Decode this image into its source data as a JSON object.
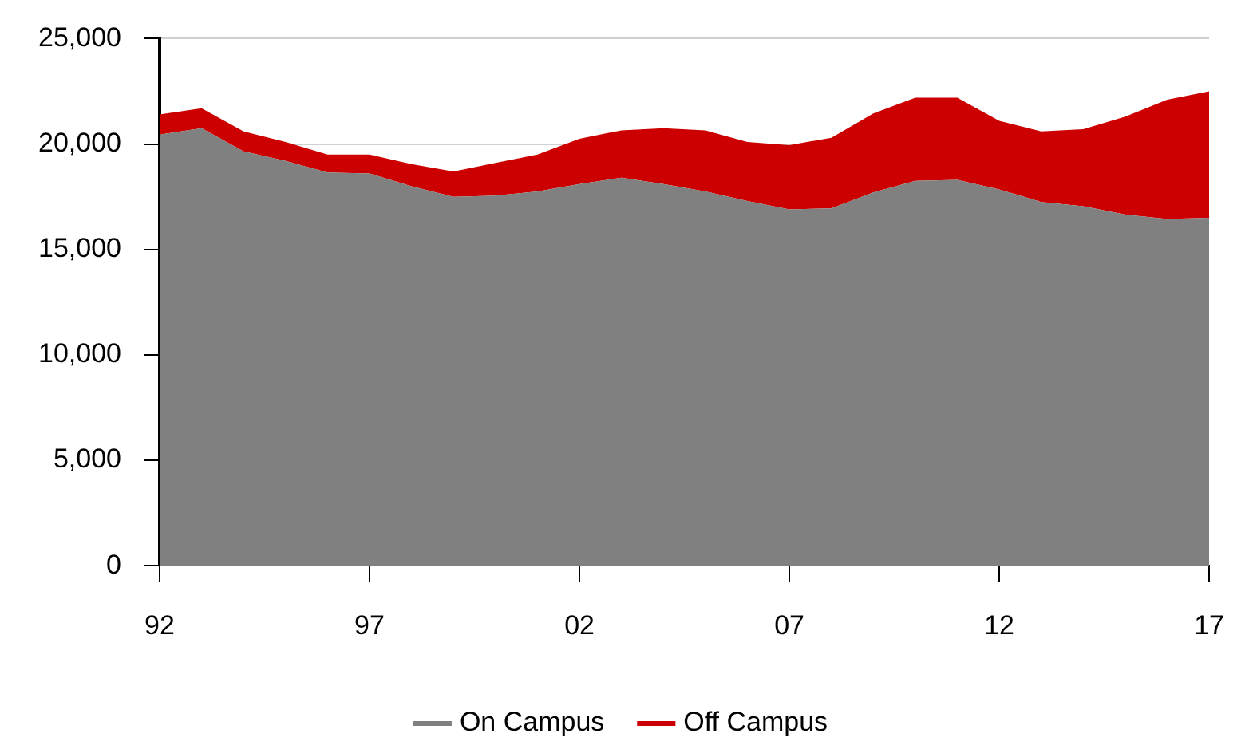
{
  "chart_data": {
    "type": "area",
    "stacked": true,
    "categories": [
      "92",
      null,
      null,
      null,
      null,
      "97",
      null,
      null,
      null,
      null,
      "02",
      null,
      null,
      null,
      null,
      "07",
      null,
      null,
      null,
      null,
      "12",
      null,
      null,
      null,
      null,
      "17"
    ],
    "series": [
      {
        "name": "On Campus",
        "color": "#808080",
        "values": [
          20450,
          20750,
          19650,
          19200,
          18650,
          18600,
          18000,
          17500,
          17550,
          17750,
          18100,
          18400,
          18100,
          17750,
          17300,
          16900,
          16950,
          17700,
          18250,
          18300,
          17850,
          17250,
          17050,
          16650,
          16450,
          16500
        ]
      },
      {
        "name": "Off Campus",
        "color": "#cc0000",
        "values": [
          950,
          950,
          950,
          900,
          850,
          900,
          1050,
          1200,
          1550,
          1750,
          2150,
          2250,
          2650,
          2900,
          2800,
          3050,
          3350,
          3750,
          3950,
          3900,
          3250,
          3350,
          3650,
          4650,
          5650,
          6000
        ]
      }
    ],
    "ylim": [
      0,
      25000
    ],
    "yticks": [
      0,
      {
        "value": 5000,
        "label": "5,000"
      },
      {
        "value": 10000,
        "label": "10,000"
      },
      {
        "value": 15000,
        "label": "15,000"
      },
      {
        "value": 20000,
        "label": "20,000"
      },
      {
        "value": 25000,
        "label": "25,000"
      }
    ],
    "grid": "y",
    "legend": "bottom"
  }
}
